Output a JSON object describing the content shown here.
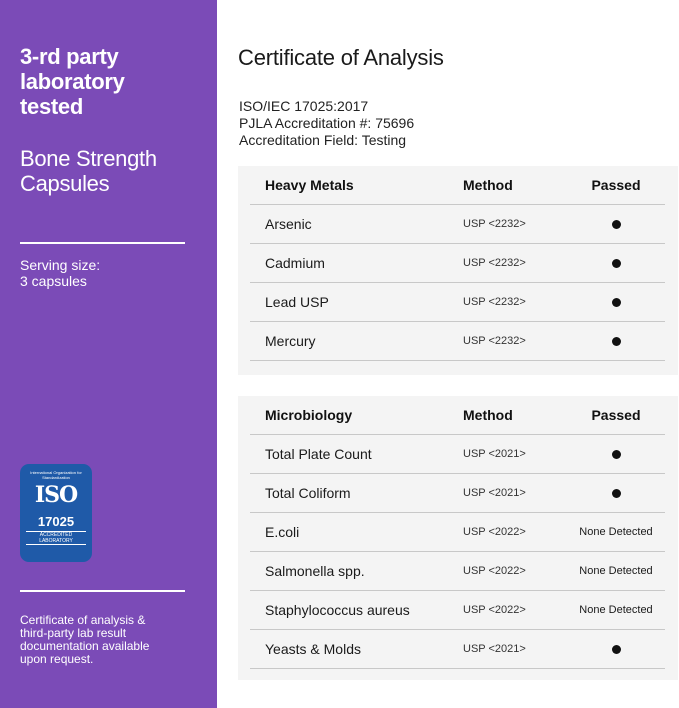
{
  "sidebar": {
    "headline": "3-rd party laboratory tested",
    "product": "Bone Strength Capsules",
    "serving_label": "Serving size:",
    "serving_value": "3 capsules",
    "badge": {
      "text": "ISO",
      "number": "17025",
      "caption": "ACCREDITED LABORATORY",
      "ring": "International Organization for Standardization",
      "color": "#1f5aa8"
    },
    "note": "Certificate of analysis & third-party lab result documentation available upon request.",
    "color": "#7b4bb7"
  },
  "main": {
    "title": "Certificate of Analysis",
    "accreditation": [
      "ISO/IEC 17025:2017",
      "PJLA Accreditation #: 75696",
      "Accreditation Field: Testing"
    ],
    "tables": [
      {
        "headers": [
          "Heavy Metals",
          "Method",
          "Passed"
        ],
        "rows": [
          {
            "name": "Arsenic",
            "method": "USP <2232>",
            "passed": "dot"
          },
          {
            "name": "Cadmium",
            "method": "USP <2232>",
            "passed": "dot"
          },
          {
            "name": "Lead USP",
            "method": "USP <2232>",
            "passed": "dot"
          },
          {
            "name": "Mercury",
            "method": "USP <2232>",
            "passed": "dot"
          }
        ]
      },
      {
        "headers": [
          "Microbiology",
          "Method",
          "Passed"
        ],
        "rows": [
          {
            "name": "Total Plate Count",
            "method": "USP <2021>",
            "passed": "dot"
          },
          {
            "name": "Total Coliform",
            "method": "USP <2021>",
            "passed": "dot"
          },
          {
            "name": "E.coli",
            "method": "USP <2022>",
            "passed": "None Detected"
          },
          {
            "name": "Salmonella spp.",
            "method": "USP <2022>",
            "passed": "None Detected"
          },
          {
            "name": "Staphylococcus aureus",
            "method": "USP <2022>",
            "passed": "None Detected"
          },
          {
            "name": "Yeasts & Molds",
            "method": "USP <2021>",
            "passed": "dot"
          }
        ]
      }
    ]
  }
}
